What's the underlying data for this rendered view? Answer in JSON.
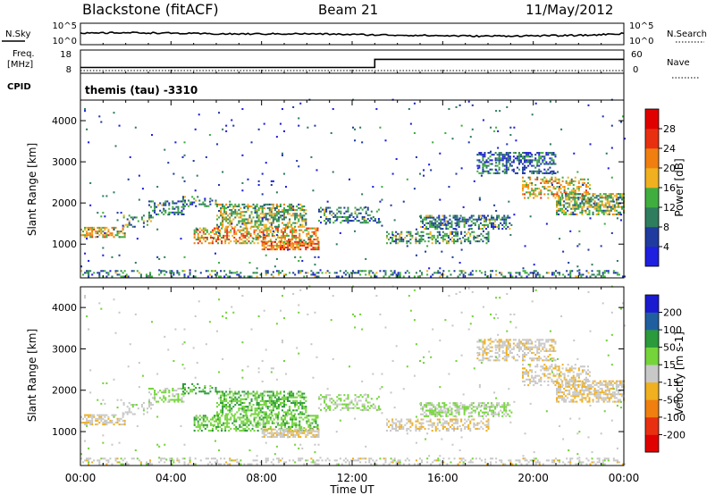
{
  "header": {
    "station": "Blackstone (fitACF)",
    "beam": "Beam 21",
    "date": "11/May/2012"
  },
  "strip": {
    "nsky_label": "N.Sky",
    "nsearch_label": "N.Search",
    "nsky_ticks": [
      "10^5",
      "10^0"
    ],
    "nsearch_ticks": [
      "10^5",
      "10^0"
    ],
    "freq_label_1": "Freq.",
    "freq_label_2": "[MHz]",
    "freq_ticks": [
      "18",
      "8"
    ],
    "nave_label": "Nave",
    "nave_ticks": [
      "60",
      "0"
    ],
    "cpid_label": "CPID",
    "cpid_text": "themis (tau) -3310"
  },
  "colors": {
    "power_scale": [
      "#1f1fe0",
      "#1f3ba0",
      "#2e7d5e",
      "#3fae3f",
      "#f0b020",
      "#f07f10",
      "#e83010",
      "#e00000"
    ],
    "velocity_scale": [
      "#e00000",
      "#e83010",
      "#f07f10",
      "#f0b020",
      "#c8c8c8",
      "#74d43a",
      "#2a9a3a",
      "#1f5fa0",
      "#1a1ad0"
    ]
  },
  "chart_data": [
    {
      "type": "heatmap",
      "name": "Power panel",
      "ylabel": "Slant Range [km]",
      "xlabel": "Time UT",
      "x_ticks": [
        "00:00",
        "04:00",
        "08:00",
        "12:00",
        "16:00",
        "20:00",
        "00:00"
      ],
      "xlim_hours": [
        0,
        24
      ],
      "y_ticks": [
        1000,
        2000,
        3000,
        4000
      ],
      "ylim": [
        180,
        4500
      ],
      "colorbar_label": "Power [dB]",
      "colorbar_ticks": [
        28,
        24,
        20,
        16,
        12,
        8,
        4
      ]
    },
    {
      "type": "heatmap",
      "name": "Velocity panel",
      "ylabel": "Slant Range [km]",
      "xlabel": "Time UT",
      "x_ticks": [
        "00:00",
        "04:00",
        "08:00",
        "12:00",
        "16:00",
        "20:00",
        "00:00"
      ],
      "xlim_hours": [
        0,
        24
      ],
      "y_ticks": [
        1000,
        2000,
        3000,
        4000
      ],
      "ylim": [
        180,
        4500
      ],
      "colorbar_label": "Velocity [m s-1]",
      "colorbar_ticks": [
        200,
        100,
        50,
        15,
        -15,
        -50,
        -100,
        -200
      ]
    }
  ],
  "echo_regions": [
    {
      "t0": 0.0,
      "t1": 2.0,
      "r0": 1150,
      "r1": 1400,
      "p": 18,
      "v": -10
    },
    {
      "t0": 1.8,
      "t1": 3.2,
      "r0": 1400,
      "r1": 1700,
      "p": 12,
      "v": 5
    },
    {
      "t0": 3.0,
      "t1": 4.6,
      "r0": 1700,
      "r1": 2050,
      "p": 10,
      "v": 20
    },
    {
      "t0": 4.5,
      "t1": 6.0,
      "r0": 1900,
      "r1": 2150,
      "p": 10,
      "v": 60
    },
    {
      "t0": 5.0,
      "t1": 10.5,
      "r0": 1000,
      "r1": 1400,
      "p": 20,
      "v": 40
    },
    {
      "t0": 6.0,
      "t1": 10.0,
      "r0": 1400,
      "r1": 1950,
      "p": 14,
      "v": 45
    },
    {
      "t0": 8.0,
      "t1": 10.5,
      "r0": 850,
      "r1": 1050,
      "p": 22,
      "v": -8
    },
    {
      "t0": 10.5,
      "t1": 13.2,
      "r0": 1500,
      "r1": 1900,
      "p": 10,
      "v": 20
    },
    {
      "t0": 13.5,
      "t1": 18.0,
      "r0": 1000,
      "r1": 1300,
      "p": 12,
      "v": -10
    },
    {
      "t0": 15.0,
      "t1": 19.0,
      "r0": 1350,
      "r1": 1700,
      "p": 10,
      "v": 15
    },
    {
      "t0": 17.5,
      "t1": 21.0,
      "r0": 2700,
      "r1": 3200,
      "p": 8,
      "v": -5
    },
    {
      "t0": 19.5,
      "t1": 22.5,
      "r0": 2100,
      "r1": 2600,
      "p": 18,
      "v": -10
    },
    {
      "t0": 21.0,
      "t1": 24.0,
      "r0": 1700,
      "r1": 2200,
      "p": 14,
      "v": -10
    },
    {
      "t0": 0.0,
      "t1": 24.0,
      "r0": 190,
      "r1": 330,
      "p": 10,
      "v": 0
    },
    {
      "t0": 0.0,
      "t1": 24.0,
      "r0": 300,
      "r1": 4500,
      "p": 6,
      "v": 10
    }
  ],
  "echo_density": [
    0.55,
    0.35,
    0.45,
    0.4,
    0.5,
    0.55,
    0.7,
    0.35,
    0.45,
    0.5,
    0.45,
    0.45,
    0.6,
    0.3,
    0.012
  ],
  "sky_noise": [
    2.6,
    2.8,
    2.75,
    2.6,
    2.5,
    2.5,
    2.55,
    2.45,
    2.3,
    2.2,
    2.1,
    2.0,
    2.05,
    2.1,
    2.2,
    2.6
  ],
  "freq_mhz": {
    "t": [
      0,
      13.0,
      13.0,
      24
    ],
    "v": [
      10.5,
      10.5,
      14.0,
      14.0
    ]
  }
}
